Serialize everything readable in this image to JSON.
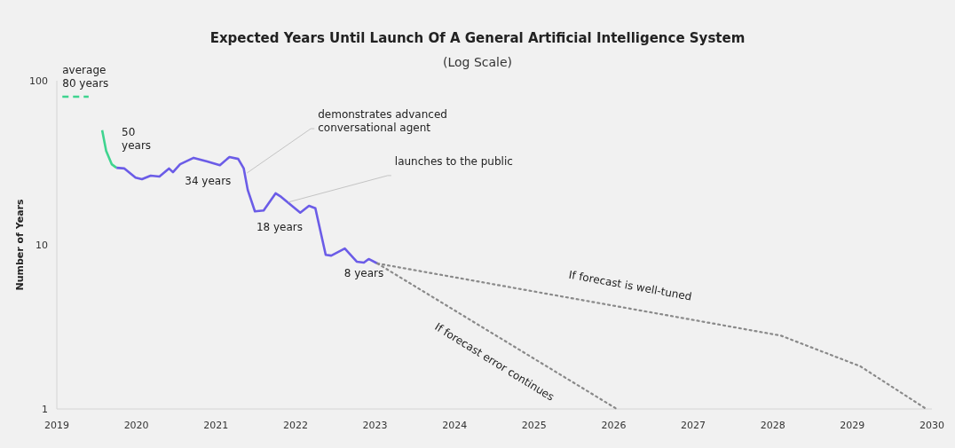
{
  "chart_data": {
    "type": "line",
    "title": "Expected Years Until Launch Of A General Artificial Intelligence System",
    "subtitle": "(Log Scale)",
    "ylabel": "Number of Years",
    "log": true,
    "grid": false,
    "xlim": [
      2019,
      2030
    ],
    "xticks": [
      2019,
      2020,
      2021,
      2022,
      2023,
      2024,
      2025,
      2026,
      2027,
      2028,
      2029,
      2030
    ],
    "ylim": [
      1,
      100
    ],
    "yticks": [
      1,
      10,
      100
    ],
    "series": [
      {
        "color": "#3fd48f",
        "line_style": "dashed",
        "x": [
          2019.07,
          2019.4
        ],
        "values": [
          80,
          80
        ]
      },
      {
        "color": "#3fd48f",
        "line_style": "solid",
        "x": [
          2019.57,
          2019.62,
          2019.69,
          2019.75
        ],
        "values": [
          50,
          37.4,
          31,
          29.5
        ]
      },
      {
        "color": "#6b5ce7",
        "line_style": "solid",
        "x": [
          2019.75,
          2019.85,
          2019.99,
          2020.07,
          2020.18,
          2020.29,
          2020.41,
          2020.46,
          2020.55,
          2020.72,
          2020.89,
          2021.05,
          2021.17,
          2021.28,
          2021.35,
          2021.4,
          2021.49,
          2021.6,
          2021.75,
          2021.82,
          2022.06,
          2022.17,
          2022.25,
          2022.38,
          2022.45,
          2022.62,
          2022.77,
          2022.86,
          2022.92,
          2023.03
        ],
        "values": [
          29.5,
          29.2,
          25.7,
          25.1,
          26.4,
          26.1,
          29.2,
          27.7,
          31,
          33.9,
          32.2,
          30.6,
          34.3,
          33.4,
          29.2,
          21.6,
          16,
          16.2,
          20.6,
          19.6,
          15.7,
          17.3,
          16.7,
          8.7,
          8.6,
          9.5,
          7.9,
          7.8,
          8.2,
          7.7
        ]
      },
      {
        "color": "#8a8a8a",
        "line_style": "dotted",
        "x": [
          2023.03,
          2028.1,
          2029.1,
          2029.93
        ],
        "values": [
          7.7,
          2.8,
          1.82,
          1
        ]
      },
      {
        "color": "#8a8a8a",
        "line_style": "dotted",
        "x": [
          2023.03,
          2026.04
        ],
        "values": [
          7.7,
          1
        ]
      }
    ],
    "annotations": [
      {
        "text": "average\n80 years",
        "x": 2019.07,
        "y": 80
      },
      {
        "text": "50\nyears",
        "x": 2019.57,
        "y": 50
      },
      {
        "text": "34 years",
        "x": 2020.9,
        "y": 32.2
      },
      {
        "text": "18 years",
        "x": 2021.8,
        "y": 19.6
      },
      {
        "text": "8 years",
        "x": 2022.86,
        "y": 7.8
      },
      {
        "text": "demonstrates advanced\nconversational agent",
        "x": 2021.39,
        "y": 27.4
      },
      {
        "text": "launches to the public",
        "x": 2021.91,
        "y": 18.2
      },
      {
        "text": "If forecast is well-tuned",
        "x": 2026.2,
        "y": 4.08
      },
      {
        "text": "If forecast error continues",
        "x": 2024.7,
        "y": 2.5
      }
    ]
  }
}
